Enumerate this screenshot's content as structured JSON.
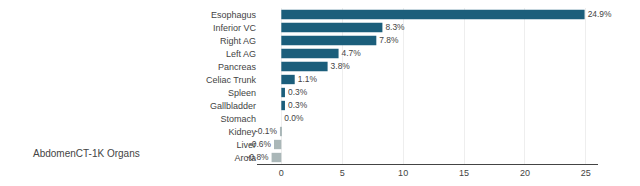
{
  "chart_data": {
    "type": "bar",
    "orientation": "horizontal",
    "categories": [
      "Esophagus",
      "Inferior VC",
      "Right AG",
      "Left AG",
      "Pancreas",
      "Celiac Trunk",
      "Spleen",
      "Gallbladder",
      "Stomach",
      "Kidney",
      "Liver",
      "Arota"
    ],
    "values": [
      24.9,
      8.3,
      7.8,
      4.7,
      3.8,
      1.1,
      0.3,
      0.3,
      0.0,
      -0.1,
      -0.6,
      -0.8
    ],
    "value_labels": [
      "24.9%",
      "8.3%",
      "7.8%",
      "4.7%",
      "3.8%",
      "1.1%",
      "0.3%",
      "0.3%",
      "0.0%",
      "-0.1%",
      "-0.6%",
      "-0.8%"
    ],
    "colors": [
      "#1b5e7b",
      "#1b5e7b",
      "#1b5e7b",
      "#1b5e7b",
      "#1b5e7b",
      "#1b5e7b",
      "#1b5e7b",
      "#1b5e7b",
      "#1b5e7b",
      "#aab7b8",
      "#aab7b8",
      "#aab7b8"
    ],
    "xlim": [
      -2,
      26
    ],
    "xticks": [
      0,
      5,
      10,
      15,
      20,
      25
    ],
    "grid": true,
    "data_labels": true,
    "annotations": [
      "AbdomenCT-1K Organs"
    ]
  }
}
